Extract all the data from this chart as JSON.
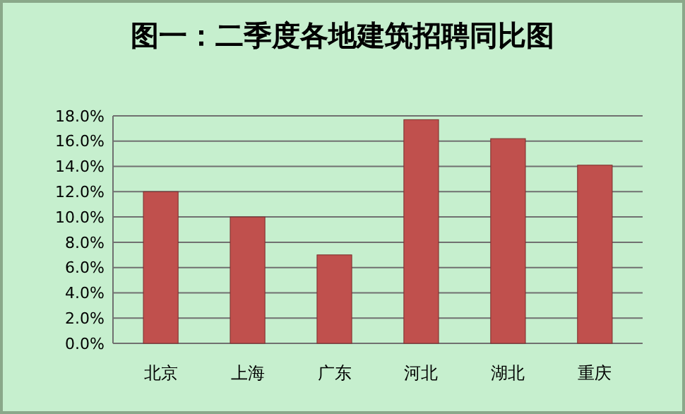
{
  "chart_data": {
    "type": "bar",
    "title": "图一：二季度各地建筑招聘同比图",
    "categories": [
      "北京",
      "上海",
      "广东",
      "河北",
      "湖北",
      "重庆"
    ],
    "values": [
      12,
      10,
      7,
      17.7,
      16.2,
      14.1
    ],
    "color": "#c0504d",
    "ylim": [
      0,
      18
    ],
    "yticks": [
      {
        "value": 0,
        "label": "0.0%"
      },
      {
        "value": 2,
        "label": "2.0%"
      },
      {
        "value": 4,
        "label": "4.0%"
      },
      {
        "value": 6,
        "label": "6.0%"
      },
      {
        "value": 8,
        "label": "8.0%"
      },
      {
        "value": 10,
        "label": "10.0%"
      },
      {
        "value": 12,
        "label": "12.0%"
      },
      {
        "value": 14,
        "label": "14.0%"
      },
      {
        "value": 16,
        "label": "16.0%"
      },
      {
        "value": 18,
        "label": "18.0%"
      }
    ],
    "grid": "y"
  }
}
